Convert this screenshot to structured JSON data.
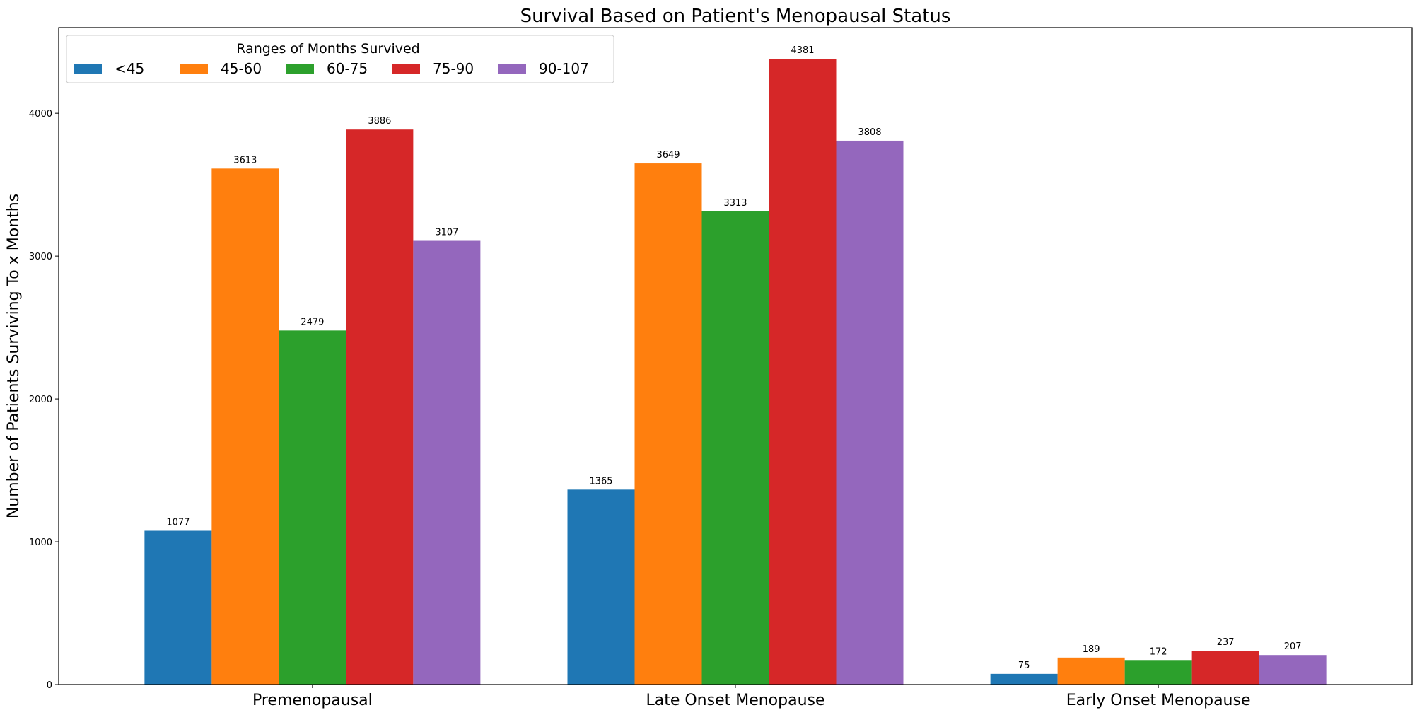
{
  "chart_data": {
    "type": "bar",
    "title": "Survival Based on Patient's Menopausal Status",
    "xlabel": "",
    "ylabel": "Number of Patients Surviving To x Months",
    "ylim": [
      0,
      4600
    ],
    "yticks": [
      0,
      1000,
      2000,
      3000,
      4000
    ],
    "categories": [
      "Premenopausal",
      "Late Onset Menopause",
      "Early Onset Menopause"
    ],
    "legend": {
      "title": "Ranges of Months Survived",
      "placement": "upper-left",
      "orientation": "horizontal"
    },
    "grid": false,
    "series": [
      {
        "name": "<45",
        "color": "#1f77b4",
        "values": [
          1077,
          1365,
          75
        ]
      },
      {
        "name": "45-60",
        "color": "#ff7f0e",
        "values": [
          3613,
          3649,
          189
        ]
      },
      {
        "name": "60-75",
        "color": "#2ca02c",
        "values": [
          2479,
          3313,
          172
        ]
      },
      {
        "name": "75-90",
        "color": "#d62728",
        "values": [
          3886,
          4381,
          237
        ]
      },
      {
        "name": "90-107",
        "color": "#9467bd",
        "values": [
          3107,
          3808,
          207
        ]
      }
    ]
  }
}
